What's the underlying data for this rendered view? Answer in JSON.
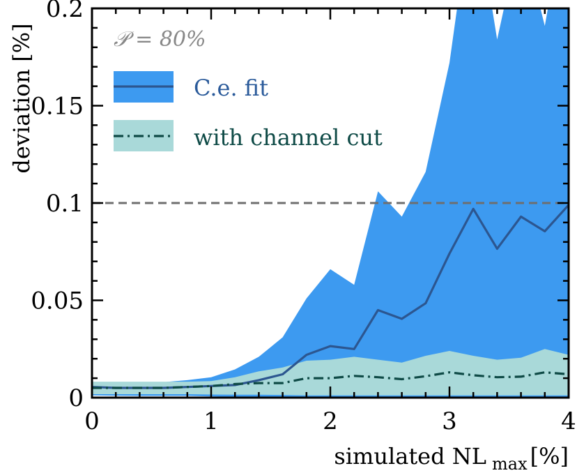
{
  "chart_data": {
    "type": "line",
    "title": "",
    "xlabel": "simulated NL",
    "xlabel_sub": "max",
    "xlabel_unit": "[%]",
    "ylabel": "deviation [%]",
    "xlim": [
      0,
      4
    ],
    "ylim": [
      0,
      0.2
    ],
    "xticks": [
      0,
      1,
      2,
      3,
      4
    ],
    "xtick_labels": [
      "0",
      "1",
      "2",
      "3",
      "4"
    ],
    "yticks": [
      0,
      0.05,
      0.1,
      0.15,
      0.2
    ],
    "ytick_labels": [
      "0",
      "0.05",
      "0.1",
      "0.15",
      "0.2"
    ],
    "grid": false,
    "legend_position": "top-left",
    "annotation": "𝒫 = 80%",
    "reference_line": {
      "y": 0.1,
      "style": "dashed",
      "color": "#6e6e6e"
    },
    "x": [
      0,
      0.2,
      0.4,
      0.6,
      0.8,
      1.0,
      1.2,
      1.4,
      1.6,
      1.8,
      2.0,
      2.2,
      2.4,
      2.6,
      2.8,
      3.0,
      3.2,
      3.4,
      3.6,
      3.8,
      4.0
    ],
    "series": [
      {
        "name": "C.e. fit",
        "color": "#2c5690",
        "band_color": "#3d9af0",
        "line_style": "solid",
        "values": [
          0.0055,
          0.005,
          0.005,
          0.005,
          0.0055,
          0.006,
          0.0065,
          0.009,
          0.012,
          0.022,
          0.0265,
          0.025,
          0.045,
          0.0405,
          0.0485,
          0.074,
          0.097,
          0.0765,
          0.093,
          0.0855,
          0.099
        ],
        "band_upper": [
          0.008,
          0.008,
          0.008,
          0.008,
          0.009,
          0.0105,
          0.0145,
          0.021,
          0.031,
          0.051,
          0.066,
          0.058,
          0.106,
          0.093,
          0.116,
          0.172,
          0.26,
          0.184,
          0.24,
          0.191,
          0.26
        ],
        "band_lower": [
          0.0012,
          0.001,
          0.0009,
          0.0009,
          0.0009,
          0.0006,
          0.0004,
          0.0003,
          0.0003,
          0.0002,
          0.0002,
          0.0004,
          0.0004,
          0.0004,
          0.0005,
          0.0005,
          0.0005,
          0.0004,
          0.0005,
          0.0005,
          0.0005
        ]
      },
      {
        "name": "with channel cut",
        "color": "#0e4a46",
        "band_color": "#a9d9d9",
        "line_style": "dash-dot",
        "values": [
          0.005,
          0.005,
          0.005,
          0.005,
          0.0055,
          0.006,
          0.007,
          0.0075,
          0.0075,
          0.01,
          0.01,
          0.0112,
          0.0105,
          0.0095,
          0.011,
          0.013,
          0.0115,
          0.0105,
          0.0108,
          0.013,
          0.012
        ],
        "band_upper": [
          0.0082,
          0.0082,
          0.0082,
          0.0082,
          0.0082,
          0.0085,
          0.0105,
          0.0135,
          0.0155,
          0.019,
          0.0195,
          0.021,
          0.0195,
          0.018,
          0.0215,
          0.024,
          0.0215,
          0.0195,
          0.0205,
          0.025,
          0.022
        ],
        "band_lower": [
          0.0018,
          0.0018,
          0.0018,
          0.0018,
          0.0018,
          0.0016,
          0.0015,
          0.0015,
          0.0014,
          0.0012,
          0.0012,
          0.0012,
          0.0012,
          0.0012,
          0.0012,
          0.0012,
          0.0012,
          0.0012,
          0.0012,
          0.0012,
          0.0012
        ]
      }
    ]
  }
}
